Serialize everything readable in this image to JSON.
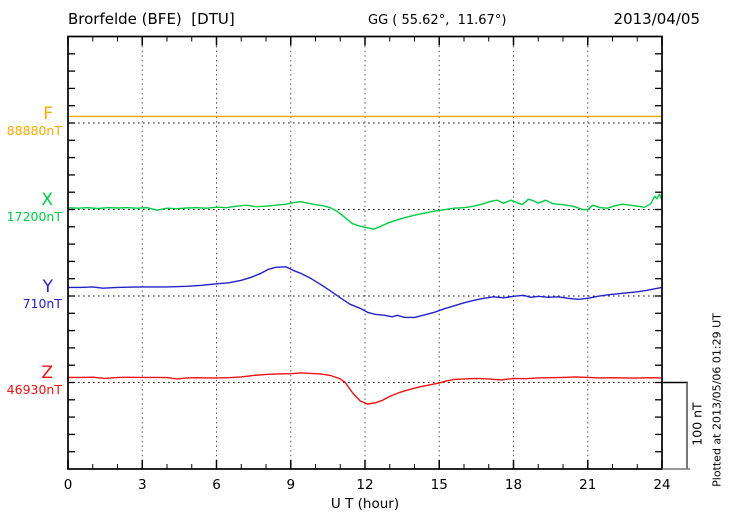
{
  "header": {
    "station": "Brorfelde (BFE)  [DTU]",
    "coords": "GG ( 55.62°,  11.67°)",
    "date": "2013/04/05"
  },
  "axis": {
    "xlabel": "U T (hour)",
    "ticks": [
      "0",
      "3",
      "6",
      "9",
      "12",
      "15",
      "18",
      "21",
      "24"
    ]
  },
  "scalebar": {
    "label": "100 nT"
  },
  "footer_note": "Plotted at 2013/05/06 01:29 UT",
  "chart_data": {
    "type": "line",
    "title": "Brorfelde (BFE) [DTU] magnetogram 2013/04/05",
    "xlabel": "U T (hour)",
    "x_range": [
      0,
      24
    ],
    "x_tick_step": 3,
    "grid": "dotted vertical lines every 3 hours; dotted horizontal baseline per trace",
    "legend_position": "left margin, one colored label per stacked trace",
    "y_scale_note": "stacked traces; 5 minor ticks = 100 nT (see scale bar); values are nT offsets from each trace baseline",
    "series": [
      {
        "name": "F",
        "baseline_label": "88880nT",
        "color": "#ffaa00",
        "points": [
          [
            0,
            7.6
          ],
          [
            6,
            7.6
          ],
          [
            12,
            7.6
          ],
          [
            18,
            7.6
          ],
          [
            24,
            7.6
          ]
        ]
      },
      {
        "name": "X",
        "baseline_label": "17200nT",
        "color": "#00cc44",
        "points": [
          [
            0,
            2.1
          ],
          [
            0.4,
            1.5
          ],
          [
            0.8,
            2.1
          ],
          [
            1.2,
            1.2
          ],
          [
            1.6,
            2.1
          ],
          [
            2,
            1.7
          ],
          [
            2.4,
            2.1
          ],
          [
            2.8,
            1.5
          ],
          [
            3.2,
            2.1
          ],
          [
            3.6,
            -0.8
          ],
          [
            4,
            1.5
          ],
          [
            4.4,
            0.9
          ],
          [
            4.8,
            1.7
          ],
          [
            5.2,
            2.1
          ],
          [
            5.6,
            1.5
          ],
          [
            6,
            2.7
          ],
          [
            6.4,
            2.1
          ],
          [
            6.8,
            3.8
          ],
          [
            7.2,
            5
          ],
          [
            7.6,
            3.2
          ],
          [
            8,
            3.8
          ],
          [
            8.4,
            5
          ],
          [
            8.8,
            6.1
          ],
          [
            9.2,
            8.4
          ],
          [
            9.4,
            9
          ],
          [
            9.7,
            7.3
          ],
          [
            10,
            5.6
          ],
          [
            10.3,
            4.4
          ],
          [
            10.6,
            2.1
          ],
          [
            10.9,
            -2.5
          ],
          [
            11.2,
            -9.5
          ],
          [
            11.5,
            -16.4
          ],
          [
            11.8,
            -19.3
          ],
          [
            12.1,
            -21.1
          ],
          [
            12.35,
            -22.8
          ],
          [
            12.6,
            -19.9
          ],
          [
            12.9,
            -15.9
          ],
          [
            13.2,
            -13
          ],
          [
            13.6,
            -9.5
          ],
          [
            14,
            -6.6
          ],
          [
            14.4,
            -4.3
          ],
          [
            14.8,
            -2
          ],
          [
            15.2,
            -0.2
          ],
          [
            15.6,
            1.5
          ],
          [
            16,
            2.1
          ],
          [
            16.4,
            3.8
          ],
          [
            16.8,
            6.7
          ],
          [
            17.1,
            9.6
          ],
          [
            17.35,
            10.8
          ],
          [
            17.6,
            7.3
          ],
          [
            17.9,
            10.8
          ],
          [
            18.1,
            8.4
          ],
          [
            18.35,
            5.6
          ],
          [
            18.6,
            11.9
          ],
          [
            18.8,
            10.2
          ],
          [
            19,
            7.3
          ],
          [
            19.3,
            10.8
          ],
          [
            19.6,
            6.7
          ],
          [
            20,
            5.6
          ],
          [
            20.4,
            3.8
          ],
          [
            20.8,
            0
          ],
          [
            21,
            -0.2
          ],
          [
            21.2,
            5
          ],
          [
            21.5,
            2.1
          ],
          [
            21.8,
            1.5
          ],
          [
            22.1,
            4.4
          ],
          [
            22.4,
            6.1
          ],
          [
            22.7,
            5
          ],
          [
            23,
            3.8
          ],
          [
            23.3,
            2.7
          ],
          [
            23.55,
            6.7
          ],
          [
            23.7,
            15.4
          ],
          [
            23.8,
            12.5
          ],
          [
            23.9,
            17.7
          ],
          [
            24,
            10.8
          ]
        ]
      },
      {
        "name": "Y",
        "baseline_label": "710nT",
        "color": "#2222cc",
        "points": [
          [
            0,
            10
          ],
          [
            0.5,
            10
          ],
          [
            1,
            10.5
          ],
          [
            1.4,
            9
          ],
          [
            2,
            10
          ],
          [
            3,
            10.5
          ],
          [
            4,
            10.5
          ],
          [
            4.8,
            11.2
          ],
          [
            5.4,
            12.4
          ],
          [
            6,
            14.1
          ],
          [
            6.5,
            15.3
          ],
          [
            7,
            18.2
          ],
          [
            7.4,
            21.6
          ],
          [
            7.8,
            26.3
          ],
          [
            8.1,
            30.9
          ],
          [
            8.4,
            33.2
          ],
          [
            8.8,
            33.8
          ],
          [
            9.1,
            29.7
          ],
          [
            9.4,
            26.3
          ],
          [
            9.8,
            20.5
          ],
          [
            10.2,
            13.5
          ],
          [
            10.6,
            6
          ],
          [
            11,
            -2.1
          ],
          [
            11.4,
            -9.6
          ],
          [
            11.8,
            -14.2
          ],
          [
            12.1,
            -18.9
          ],
          [
            12.4,
            -21.2
          ],
          [
            12.8,
            -22.3
          ],
          [
            13.1,
            -24.1
          ],
          [
            13.3,
            -22.3
          ],
          [
            13.6,
            -24.7
          ],
          [
            14,
            -24.7
          ],
          [
            14.4,
            -21.8
          ],
          [
            14.8,
            -18.9
          ],
          [
            15.2,
            -14.8
          ],
          [
            15.6,
            -11.3
          ],
          [
            16,
            -7.9
          ],
          [
            16.4,
            -5
          ],
          [
            16.8,
            -2.7
          ],
          [
            17.2,
            -0.9
          ],
          [
            17.6,
            -2.1
          ],
          [
            18,
            -0.3
          ],
          [
            18.4,
            0.8
          ],
          [
            18.7,
            -1.5
          ],
          [
            19,
            -0.3
          ],
          [
            19.4,
            -1.5
          ],
          [
            19.8,
            -0.9
          ],
          [
            20.2,
            -2.7
          ],
          [
            20.6,
            -3.8
          ],
          [
            21,
            -2.7
          ],
          [
            21.4,
            -0.3
          ],
          [
            21.8,
            1.4
          ],
          [
            22.2,
            2.5
          ],
          [
            22.6,
            3.7
          ],
          [
            23,
            4.9
          ],
          [
            23.4,
            6.6
          ],
          [
            23.7,
            8.3
          ],
          [
            24,
            10
          ]
        ]
      },
      {
        "name": "Z",
        "baseline_label": "46930nT",
        "color": "#ee1111",
        "points": [
          [
            0,
            5.9
          ],
          [
            0.5,
            5.9
          ],
          [
            1,
            6.1
          ],
          [
            1.5,
            4.7
          ],
          [
            2,
            5.9
          ],
          [
            2.5,
            6
          ],
          [
            3,
            5.9
          ],
          [
            3.5,
            5.9
          ],
          [
            4,
            5.7
          ],
          [
            4.4,
            4.2
          ],
          [
            4.8,
            5.3
          ],
          [
            5.2,
            5.5
          ],
          [
            5.6,
            5.3
          ],
          [
            6,
            5.3
          ],
          [
            6.5,
            5.5
          ],
          [
            7,
            6.5
          ],
          [
            7.5,
            8.2
          ],
          [
            8,
            9.4
          ],
          [
            8.5,
            10
          ],
          [
            9,
            10.2
          ],
          [
            9.4,
            11.1
          ],
          [
            9.8,
            10.5
          ],
          [
            10.2,
            10
          ],
          [
            10.6,
            8.2
          ],
          [
            11,
            4.2
          ],
          [
            11.2,
            0
          ],
          [
            11.5,
            -12
          ],
          [
            11.8,
            -21.3
          ],
          [
            12.1,
            -24.8
          ],
          [
            12.4,
            -23.6
          ],
          [
            12.7,
            -20.7
          ],
          [
            13,
            -16.1
          ],
          [
            13.4,
            -11.5
          ],
          [
            13.8,
            -8
          ],
          [
            14.2,
            -5.1
          ],
          [
            14.6,
            -2.8
          ],
          [
            15,
            -0.5
          ],
          [
            15.3,
            1.9
          ],
          [
            15.6,
            3.6
          ],
          [
            16,
            4.2
          ],
          [
            16.5,
            4.7
          ],
          [
            17,
            4.2
          ],
          [
            17.5,
            3
          ],
          [
            18,
            4.7
          ],
          [
            18.5,
            4.4
          ],
          [
            19,
            5.3
          ],
          [
            19.5,
            5.5
          ],
          [
            20,
            5.9
          ],
          [
            20.5,
            6.5
          ],
          [
            21,
            5.9
          ],
          [
            21.5,
            5.3
          ],
          [
            22,
            5.6
          ],
          [
            22.5,
            5.3
          ],
          [
            23,
            5.1
          ],
          [
            23.5,
            5.6
          ],
          [
            24,
            5.3
          ]
        ]
      }
    ]
  }
}
